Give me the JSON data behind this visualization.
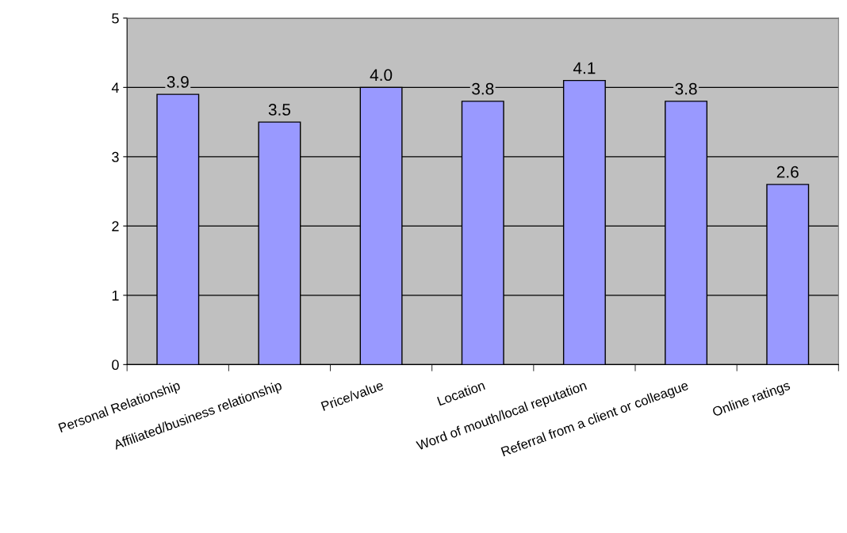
{
  "chart_data": {
    "type": "bar",
    "categories": [
      "Personal Relationship",
      "Affiliated/business relationship",
      "Price/value",
      "Location",
      "Word of mouth/local reputation",
      "Referral from a client or colleague",
      "Online ratings"
    ],
    "values": [
      3.9,
      3.5,
      4.0,
      3.8,
      4.1,
      3.8,
      2.6
    ],
    "value_labels": [
      "3.9",
      "3.5",
      "4.0",
      "3.8",
      "4.1",
      "3.8",
      "2.6"
    ],
    "color": "#9999ff",
    "ylim": [
      0,
      5
    ],
    "yticks": [
      0,
      1,
      2,
      3,
      4,
      5
    ],
    "grid": "y"
  }
}
